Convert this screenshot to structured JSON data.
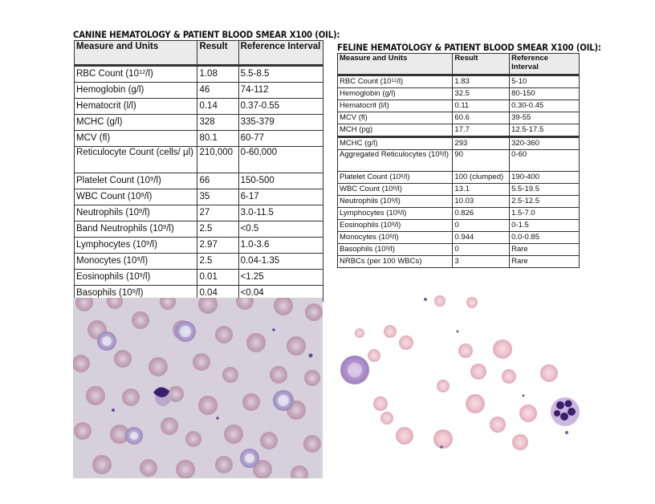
{
  "canine": {
    "heading": "CANINE HEMATOLOGY & PATIENT BLOOD SMEAR X100 (OIL):",
    "columns": [
      "Measure and Units",
      "Result",
      "Reference Interval"
    ],
    "rows": [
      {
        "measure": "RBC Count (10",
        "sup": "12",
        "tail": "/l)",
        "result": "1.08",
        "ref": "5.5-8.5"
      },
      {
        "measure": "Hemoglobin (g/l)",
        "result": "46",
        "ref": "74-112"
      },
      {
        "measure": "Hematocrit (l/l)",
        "result": "0.14",
        "ref": "0.37-0.55"
      },
      {
        "measure": "MCHC (g/l)",
        "result": "328",
        "ref": "335-379"
      },
      {
        "measure": "MCV (fl)",
        "result": "80.1",
        "ref": "60-77"
      },
      {
        "measure": "Reticulocyte Count (cells/ μl)",
        "result": "210,000",
        "ref": "0-60,000"
      },
      {
        "measure": "Platelet Count (10",
        "sup": "9",
        "tail": "/l)",
        "result": "66",
        "ref": "150-500"
      },
      {
        "measure": "WBC Count (10",
        "sup": "9",
        "tail": "/l)",
        "result": "35",
        "ref": "6-17"
      },
      {
        "measure": "Neutrophils (10",
        "sup": "9",
        "tail": "/l)",
        "result": "27",
        "ref": "3.0-11.5"
      },
      {
        "measure": "Band Neutrophils (10",
        "sup": "9",
        "tail": "/l)",
        "result": "2.5",
        "ref": "<0.5"
      },
      {
        "measure": "Lymphocytes (10",
        "sup": "9",
        "tail": "/l)",
        "result": "2.97",
        "ref": "1.0-3.6"
      },
      {
        "measure": "Monocytes (10",
        "sup": "9",
        "tail": "/l)",
        "result": "2.5",
        "ref": "0.04-1.35"
      },
      {
        "measure": "Eosinophils (10",
        "sup": "9",
        "tail": "/l)",
        "result": "0.01",
        "ref": "<1.25"
      },
      {
        "measure": "Basophils (10",
        "sup": "9",
        "tail": "/l)",
        "result": "0.04",
        "ref": "<0.04"
      }
    ]
  },
  "feline": {
    "heading": "FELINE HEMATOLOGY & PATIENT BLOOD SMEAR X100 (OIL):",
    "columns": [
      "Measure and Units",
      "Result",
      "Reference Interval"
    ],
    "rows": [
      {
        "measure": "RBC Count (10",
        "sup": "12",
        "tail": "/l)",
        "result": "1.83",
        "ref": "5-10"
      },
      {
        "measure": "Hemoglobin (g/l)",
        "result": "32.5",
        "ref": "80-150"
      },
      {
        "measure": "Hematocrit (l/l)",
        "result": "0.11",
        "ref": "0.30-0.45"
      },
      {
        "measure": "MCV (fl)",
        "result": "60.6",
        "ref": "39-55"
      },
      {
        "measure": "MCH (pg)",
        "result": "17.7",
        "ref": "12.5-17.5"
      },
      {
        "measure": "MCHC (g/l)",
        "result": "293",
        "ref": "320-360"
      },
      {
        "measure": "Aggregated Reticulocytes (10",
        "sup": "9",
        "tail": "/l)",
        "result": "90",
        "ref": "0-60"
      },
      {
        "measure": "Platelet Count (10",
        "sup": "9",
        "tail": "/l)",
        "result": "100 (clumped)",
        "ref": "190-400"
      },
      {
        "measure": "WBC Count (10",
        "sup": "9",
        "tail": "/l)",
        "result": "13.1",
        "ref": "5.5-19.5"
      },
      {
        "measure": "Neutrophils (10",
        "sup": "9",
        "tail": "/l)",
        "result": "10.03",
        "ref": "2.5-12.5"
      },
      {
        "measure": "Lymphocytes (10",
        "sup": "9",
        "tail": "/l)",
        "result": "0.826",
        "ref": "1.5-7.0"
      },
      {
        "measure": "Eosinophils (10",
        "sup": "9",
        "tail": "/l)",
        "result": "0",
        "ref": "0-1.5"
      },
      {
        "measure": "Monocytes (10",
        "sup": "9",
        "tail": "/l)",
        "result": "0.944",
        "ref": "0.0-0.85"
      },
      {
        "measure": "Basophils (10",
        "sup": "9",
        "tail": "/l)",
        "result": "0",
        "ref": "Rare"
      },
      {
        "measure": "NRBCs (per 100 WBCs)",
        "result": "3",
        "ref": "Rare"
      }
    ]
  },
  "colors": {
    "header_fill": "#ebebeb",
    "canine_smear_bg": "#d6d0dd",
    "canine_rbc": "#c7a7bb",
    "feline_smear_bg": "#ffffff",
    "feline_rbc": "#ecc4d0",
    "nucleus": "#3c1f6b"
  }
}
